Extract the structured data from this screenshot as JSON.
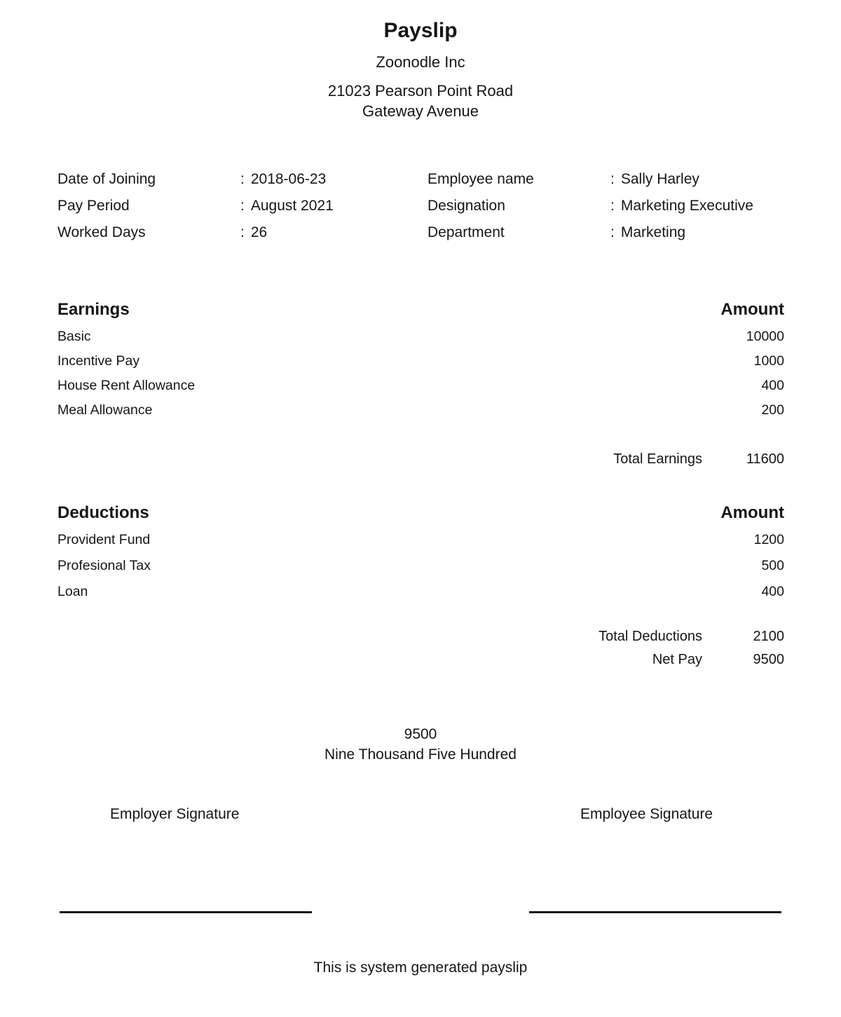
{
  "header": {
    "title": "Payslip",
    "company": "Zoonodle Inc",
    "address_line1": "21023 Pearson Point Road",
    "address_line2": "Gateway Avenue"
  },
  "punctuation": {
    "colon": ":"
  },
  "employee_info": {
    "left": [
      {
        "label": "Date of Joining",
        "value": "2018-06-23"
      },
      {
        "label": "Pay Period",
        "value": "August 2021"
      },
      {
        "label": "Worked Days",
        "value": "26"
      }
    ],
    "right": [
      {
        "label": "Employee name",
        "value": "Sally Harley"
      },
      {
        "label": "Designation",
        "value": "Marketing Executive"
      },
      {
        "label": "Department",
        "value": "Marketing"
      }
    ]
  },
  "earnings": {
    "heading": "Earnings",
    "amount_header": "Amount",
    "rows": [
      {
        "label": "Basic",
        "amount": "10000"
      },
      {
        "label": "Incentive Pay",
        "amount": "1000"
      },
      {
        "label": "House Rent Allowance",
        "amount": "400"
      },
      {
        "label": "Meal Allowance",
        "amount": "200"
      }
    ],
    "total_label": "Total Earnings",
    "total_amount": "11600"
  },
  "deductions": {
    "heading": "Deductions",
    "amount_header": "Amount",
    "rows": [
      {
        "label": "Provident Fund",
        "amount": "1200"
      },
      {
        "label": "Profesional Tax",
        "amount": "500"
      },
      {
        "label": "Loan",
        "amount": "400"
      }
    ],
    "total_label": "Total Deductions",
    "total_amount": "2100",
    "net_pay_label": "Net Pay",
    "net_pay_amount": "9500"
  },
  "net_pay_summary": {
    "amount": "9500",
    "in_words": "Nine Thousand Five Hundred"
  },
  "signatures": {
    "employer_label": "Employer Signature",
    "employee_label": "Employee Signature"
  },
  "footer": {
    "note": "This is system generated payslip"
  }
}
